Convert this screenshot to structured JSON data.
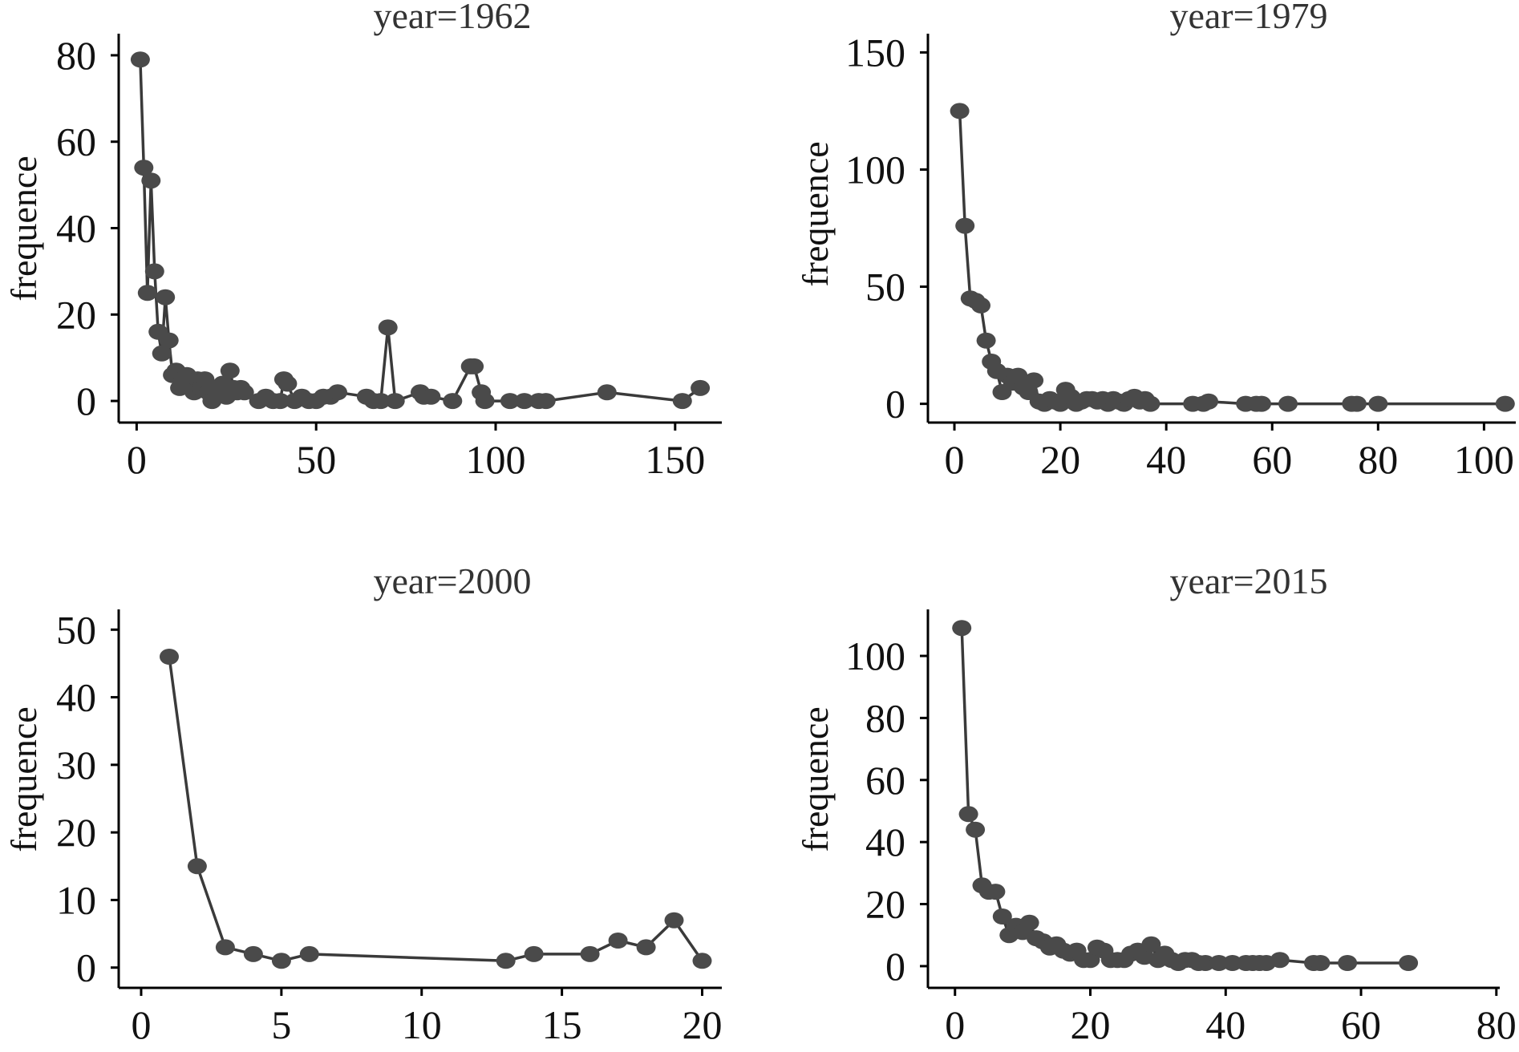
{
  "colors": {
    "series": "#4a4a4a",
    "line": "#3a3a3a",
    "axis": "#000000"
  },
  "chart_data": [
    {
      "type": "line",
      "title": "year=1962",
      "xlabel": "",
      "ylabel": "frequence",
      "xlim": [
        -5,
        163
      ],
      "ylim": [
        -5,
        85
      ],
      "xticks": [
        0,
        50,
        100,
        150
      ],
      "yticks": [
        0,
        20,
        40,
        60,
        80
      ],
      "grid": false,
      "series": [
        {
          "marker": "circle",
          "x": [
            1,
            2,
            3,
            4,
            5,
            6,
            7,
            8,
            9,
            10,
            11,
            12,
            13,
            14,
            15,
            16,
            17,
            18,
            19,
            20,
            21,
            22,
            23,
            24,
            25,
            26,
            27,
            28,
            29,
            30,
            34,
            36,
            38,
            40,
            41,
            42,
            44,
            46,
            48,
            50,
            52,
            54,
            56,
            64,
            66,
            68,
            70,
            72,
            79,
            80,
            82,
            88,
            93,
            94,
            96,
            97,
            104,
            108,
            112,
            114,
            131,
            152,
            157
          ],
          "y": [
            79,
            54,
            25,
            51,
            30,
            16,
            11,
            24,
            14,
            6,
            7,
            3,
            5,
            6,
            4,
            2,
            5,
            3,
            5,
            2,
            0,
            3,
            2,
            4,
            1,
            7,
            3,
            2,
            3,
            2,
            0,
            1,
            0,
            0,
            5,
            4,
            0,
            1,
            0,
            0,
            1,
            1,
            2,
            1,
            0,
            0,
            17,
            0,
            2,
            1,
            1,
            0,
            8,
            8,
            2,
            0,
            0,
            0,
            0,
            0,
            2,
            0,
            3
          ]
        }
      ]
    },
    {
      "type": "line",
      "title": "year=1979",
      "xlabel": "",
      "ylabel": "frequence",
      "xlim": [
        -5,
        106
      ],
      "ylim": [
        -8,
        158
      ],
      "xticks": [
        0,
        20,
        40,
        60,
        80,
        100
      ],
      "yticks": [
        0,
        50,
        100,
        150
      ],
      "grid": false,
      "series": [
        {
          "marker": "circle",
          "x": [
            1,
            2,
            3,
            4,
            5,
            6,
            7,
            8,
            9,
            10,
            11,
            12,
            13,
            14,
            15,
            16,
            17,
            18,
            19,
            20,
            21,
            22,
            23,
            24,
            25,
            26,
            27,
            28,
            29,
            30,
            31,
            32,
            33,
            34,
            35,
            36,
            37,
            45,
            47,
            48,
            55,
            57,
            58,
            63,
            75,
            76,
            80,
            104
          ],
          "y": [
            125,
            76,
            45,
            44,
            42,
            27,
            18,
            14,
            5,
            12,
            9,
            12,
            7,
            5,
            10,
            1,
            0,
            2,
            1,
            0,
            6,
            3,
            0,
            1,
            2,
            2,
            1,
            2,
            0,
            2,
            1,
            0,
            2,
            3,
            1,
            2,
            0,
            0,
            0,
            1,
            0,
            0,
            0,
            0,
            0,
            0,
            0,
            0
          ]
        }
      ]
    },
    {
      "type": "line",
      "title": "year=2000",
      "xlabel": "",
      "ylabel": "frequence",
      "xlim": [
        -0.8,
        20.7
      ],
      "ylim": [
        -3,
        53
      ],
      "xticks": [
        0,
        5,
        10,
        15,
        20
      ],
      "yticks": [
        0,
        10,
        20,
        30,
        40,
        50
      ],
      "grid": false,
      "series": [
        {
          "marker": "circle",
          "x": [
            1,
            2,
            3,
            4,
            5,
            6,
            13,
            14,
            16,
            17,
            18,
            19,
            20
          ],
          "y": [
            46,
            15,
            3,
            2,
            1,
            2,
            1,
            2,
            2,
            4,
            3,
            7,
            1
          ]
        }
      ]
    },
    {
      "type": "line",
      "title": "year=2015",
      "xlabel": "",
      "ylabel": "frequence",
      "xlim": [
        -4,
        80.5
      ],
      "ylim": [
        -7,
        115
      ],
      "xticks": [
        0,
        20,
        40,
        60,
        80
      ],
      "yticks": [
        0,
        20,
        40,
        60,
        80,
        100
      ],
      "grid": false,
      "series": [
        {
          "marker": "circle",
          "x": [
            1,
            2,
            3,
            4,
            5,
            6,
            7,
            8,
            9,
            10,
            11,
            12,
            13,
            14,
            15,
            16,
            17,
            18,
            19,
            20,
            21,
            22,
            23,
            24,
            25,
            26,
            27,
            28,
            29,
            30,
            31,
            32,
            33,
            34,
            35,
            36,
            37,
            39,
            41,
            43,
            44,
            45,
            46,
            48,
            53,
            54,
            58,
            67
          ],
          "y": [
            109,
            49,
            44,
            26,
            24,
            24,
            16,
            10,
            13,
            11,
            14,
            9,
            8,
            6,
            7,
            5,
            4,
            5,
            2,
            2,
            6,
            5,
            2,
            2,
            2,
            4,
            5,
            3,
            7,
            2,
            4,
            2,
            1,
            2,
            2,
            1,
            1,
            1,
            1,
            1,
            1,
            1,
            1,
            2,
            1,
            1,
            1,
            1
          ]
        }
      ]
    }
  ]
}
